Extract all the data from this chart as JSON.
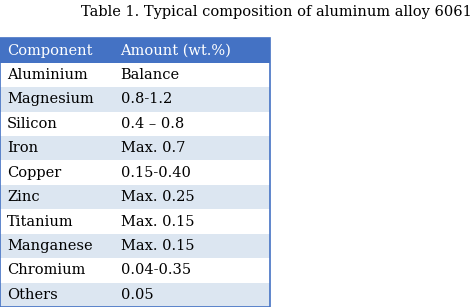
{
  "title": "Table 1. Typical composition of aluminum alloy 6061",
  "header": [
    "Component",
    "Amount (wt.%)"
  ],
  "rows": [
    [
      "Aluminium",
      "Balance"
    ],
    [
      "Magnesium",
      "0.8-1.2"
    ],
    [
      "Silicon",
      "0.4 – 0.8"
    ],
    [
      "Iron",
      "Max. 0.7"
    ],
    [
      "Copper",
      "0.15-0.40"
    ],
    [
      "Zinc",
      "Max. 0.25"
    ],
    [
      "Titanium",
      "Max. 0.15"
    ],
    [
      "Manganese",
      "Max. 0.15"
    ],
    [
      "Chromium",
      "0.04-0.35"
    ],
    [
      "Others",
      "0.05"
    ]
  ],
  "header_bg": "#4472C4",
  "header_fg": "#FFFFFF",
  "row_bg_odd": "#DCE6F1",
  "row_bg_even": "#FFFFFF",
  "title_fontsize": 10.5,
  "cell_fontsize": 10.5,
  "col_split": 0.42
}
